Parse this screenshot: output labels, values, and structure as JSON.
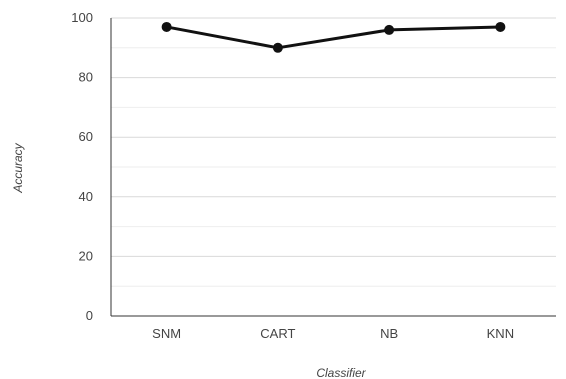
{
  "chart_data": {
    "type": "line",
    "xlabel": "Classifier",
    "ylabel": "Accuracy",
    "categories": [
      "SNM",
      "CART",
      "NB",
      "KNN"
    ],
    "series": [
      {
        "values": [
          97,
          90,
          96,
          97
        ]
      }
    ],
    "ylim": [
      0,
      100
    ],
    "yticks": [
      0,
      20,
      40,
      60,
      80,
      100
    ],
    "grid": true,
    "legend": "none",
    "colors": {
      "line": "#111111",
      "marker": "#111111"
    }
  }
}
